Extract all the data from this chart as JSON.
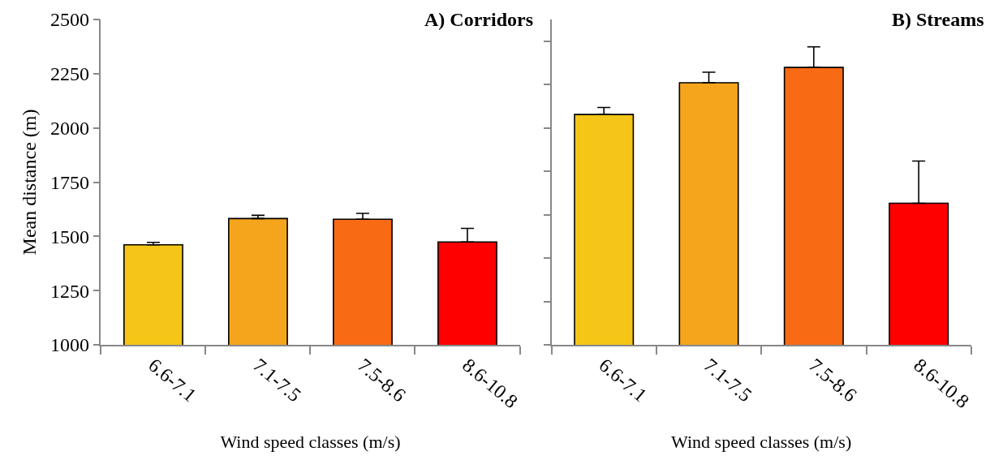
{
  "chart_data": [
    {
      "type": "bar",
      "title": "A) Corridors",
      "xlabel": "Wind speed classes (m/s)",
      "ylabel": "Mean distance (m)",
      "categories": [
        "6.6-7.1",
        "7.1-7.5",
        "7.5-8.6",
        "8.6-10.8"
      ],
      "values": [
        1461,
        1582,
        1579,
        1474
      ],
      "colors": [
        "#f5c518",
        "#f5a51c",
        "#f86a14",
        "#ff0000"
      ],
      "errors": [
        [
          1461,
          1472
        ],
        [
          1582,
          1597
        ],
        [
          1579,
          1606
        ],
        [
          1474,
          1537
        ]
      ],
      "ylim": [
        1000,
        2500
      ],
      "yticks": [
        1000,
        1250,
        1500,
        1750,
        2000,
        2250,
        2500
      ]
    },
    {
      "type": "bar",
      "title": "B) Streams",
      "xlabel": "Wind speed classes (m/s)",
      "categories": [
        "6.6-7.1",
        "7.1-7.5",
        "7.5-8.6",
        "8.6-10.8"
      ],
      "values": [
        2062,
        2208,
        2279,
        1653
      ],
      "colors": [
        "#f5c518",
        "#f5a51c",
        "#f86a14",
        "#ff0000"
      ],
      "errors": [
        [
          2062,
          2094
        ],
        [
          2208,
          2257
        ],
        [
          2279,
          2374
        ],
        [
          1653,
          1847
        ]
      ],
      "ylim": [
        1000,
        2500
      ],
      "yticks": [
        {
          "value": 1000,
          "label": null
        },
        {
          "value": 1200,
          "label": null
        },
        {
          "value": 1400,
          "label": null
        },
        {
          "value": 1600,
          "label": null
        },
        {
          "value": 1800,
          "label": null
        },
        {
          "value": 2000,
          "label": null
        },
        {
          "value": 2200,
          "label": null
        },
        {
          "value": 2400,
          "label": null
        }
      ],
      "tick_labels": "x"
    }
  ]
}
